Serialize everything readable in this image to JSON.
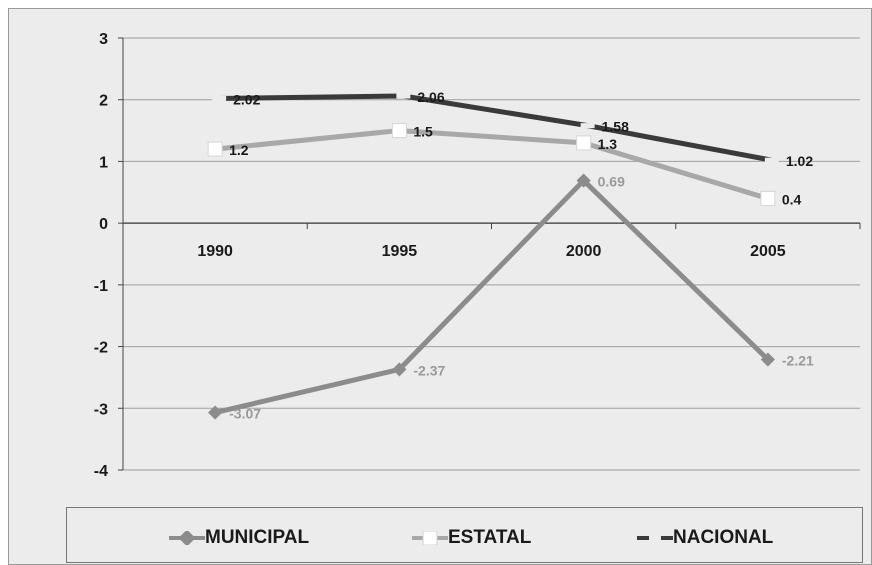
{
  "chart_data": {
    "type": "line",
    "categories": [
      "1990",
      "1995",
      "2000",
      "2005"
    ],
    "ylim": [
      -4,
      3
    ],
    "yticks": [
      3,
      2,
      1,
      0,
      -1,
      -2,
      -3,
      -4
    ],
    "grid": true,
    "legend_position": "bottom",
    "series": [
      {
        "name": "MUNICIPAL",
        "values": [
          -3.07,
          -2.37,
          0.69,
          -2.21
        ],
        "labels": [
          "-3.07",
          "-2.37",
          "0.69",
          "-2.21"
        ],
        "color": "#8c8c8c",
        "marker": "diamond"
      },
      {
        "name": "ESTATAL",
        "values": [
          1.2,
          1.5,
          1.3,
          0.4
        ],
        "labels": [
          "1.2",
          "1.5",
          "1.3",
          "0.4"
        ],
        "color": "#a8a8a8",
        "marker": "square"
      },
      {
        "name": "NACIONAL",
        "values": [
          2.02,
          2.06,
          1.58,
          1.02
        ],
        "labels": [
          "2.02",
          "2.06",
          "1.58",
          "1.02"
        ],
        "color": "#3a3a3a",
        "marker": "dash"
      }
    ]
  }
}
